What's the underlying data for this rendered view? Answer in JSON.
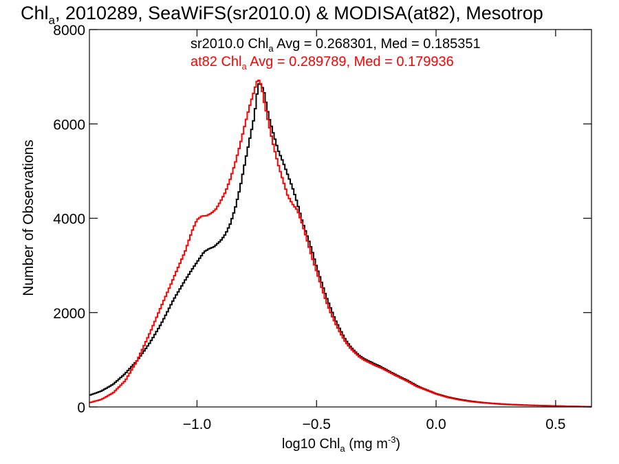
{
  "chart_data": {
    "type": "line",
    "title": "Chl",
    "title_sub": "a",
    "title_rest": ", 2010289, SeaWiFS(sr2010.0) & MODISA(at82), Mesotrop",
    "xlabel_pre": "log10 Chl",
    "xlabel_sub": "a",
    "xlabel_mid": " (mg m",
    "xlabel_sup": "-3",
    "xlabel_post": ")",
    "ylabel": "Number of Observations",
    "xlim": [
      -1.45,
      0.65
    ],
    "ylim": [
      0,
      8000
    ],
    "x_ticks": [
      {
        "value": -1.0,
        "label": "−1.0"
      },
      {
        "value": -0.5,
        "label": "−0.5"
      },
      {
        "value": 0.0,
        "label": "0.0"
      },
      {
        "value": 0.5,
        "label": "0.5"
      }
    ],
    "y_ticks": [
      {
        "value": 0,
        "label": "0"
      },
      {
        "value": 2000,
        "label": "2000"
      },
      {
        "value": 4000,
        "label": "4000"
      },
      {
        "value": 6000,
        "label": "6000"
      },
      {
        "value": 8000,
        "label": "8000"
      }
    ],
    "grid": false,
    "annotations": [
      {
        "pre": "sr2010.0 Chl",
        "sub": "a",
        "post": " Avg = 0.268301, Med = 0.185351",
        "color": "#000000"
      },
      {
        "pre": "at82 Chl",
        "sub": "a",
        "post": " Avg = 0.289789, Med = 0.179936",
        "color": "#ff0000"
      }
    ],
    "series": [
      {
        "color": "#000000",
        "points": [
          [
            -1.45,
            250
          ],
          [
            -1.4,
            340
          ],
          [
            -1.35,
            480
          ],
          [
            -1.3,
            700
          ],
          [
            -1.25,
            980
          ],
          [
            -1.2,
            1350
          ],
          [
            -1.15,
            1780
          ],
          [
            -1.1,
            2250
          ],
          [
            -1.05,
            2650
          ],
          [
            -1.0,
            3050
          ],
          [
            -0.97,
            3300
          ],
          [
            -0.95,
            3380
          ],
          [
            -0.93,
            3430
          ],
          [
            -0.9,
            3570
          ],
          [
            -0.88,
            3700
          ],
          [
            -0.86,
            3900
          ],
          [
            -0.84,
            4200
          ],
          [
            -0.82,
            4600
          ],
          [
            -0.8,
            5100
          ],
          [
            -0.78,
            5600
          ],
          [
            -0.76,
            6100
          ],
          [
            -0.75,
            6550
          ],
          [
            -0.74,
            6850
          ],
          [
            -0.73,
            6800
          ],
          [
            -0.72,
            6700
          ],
          [
            -0.7,
            6200
          ],
          [
            -0.68,
            5850
          ],
          [
            -0.66,
            5500
          ],
          [
            -0.64,
            5250
          ],
          [
            -0.62,
            4950
          ],
          [
            -0.6,
            4650
          ],
          [
            -0.58,
            4300
          ],
          [
            -0.56,
            3900
          ],
          [
            -0.54,
            3600
          ],
          [
            -0.52,
            3300
          ],
          [
            -0.5,
            2950
          ],
          [
            -0.48,
            2650
          ],
          [
            -0.46,
            2350
          ],
          [
            -0.44,
            2100
          ],
          [
            -0.42,
            1850
          ],
          [
            -0.4,
            1650
          ],
          [
            -0.38,
            1450
          ],
          [
            -0.36,
            1300
          ],
          [
            -0.34,
            1180
          ],
          [
            -0.32,
            1080
          ],
          [
            -0.3,
            1010
          ],
          [
            -0.28,
            960
          ],
          [
            -0.26,
            910
          ],
          [
            -0.24,
            870
          ],
          [
            -0.22,
            820
          ],
          [
            -0.2,
            770
          ],
          [
            -0.18,
            720
          ],
          [
            -0.16,
            670
          ],
          [
            -0.14,
            620
          ],
          [
            -0.12,
            570
          ],
          [
            -0.1,
            510
          ],
          [
            -0.08,
            450
          ],
          [
            -0.06,
            400
          ],
          [
            -0.04,
            360
          ],
          [
            -0.02,
            320
          ],
          [
            0.0,
            280
          ],
          [
            0.05,
            210
          ],
          [
            0.1,
            160
          ],
          [
            0.15,
            120
          ],
          [
            0.2,
            90
          ],
          [
            0.25,
            70
          ],
          [
            0.3,
            55
          ],
          [
            0.35,
            45
          ],
          [
            0.4,
            35
          ],
          [
            0.45,
            28
          ],
          [
            0.5,
            22
          ],
          [
            0.55,
            15
          ],
          [
            0.6,
            10
          ],
          [
            0.65,
            5
          ]
        ]
      },
      {
        "color": "#ff0000",
        "points": [
          [
            -1.45,
            90
          ],
          [
            -1.4,
            160
          ],
          [
            -1.35,
            300
          ],
          [
            -1.3,
            550
          ],
          [
            -1.25,
            980
          ],
          [
            -1.2,
            1550
          ],
          [
            -1.15,
            2150
          ],
          [
            -1.1,
            2700
          ],
          [
            -1.05,
            3250
          ],
          [
            -1.02,
            3700
          ],
          [
            -1.0,
            3950
          ],
          [
            -0.98,
            4050
          ],
          [
            -0.96,
            4080
          ],
          [
            -0.94,
            4150
          ],
          [
            -0.92,
            4250
          ],
          [
            -0.9,
            4420
          ],
          [
            -0.88,
            4600
          ],
          [
            -0.86,
            4850
          ],
          [
            -0.84,
            5150
          ],
          [
            -0.82,
            5500
          ],
          [
            -0.8,
            5900
          ],
          [
            -0.78,
            6300
          ],
          [
            -0.76,
            6650
          ],
          [
            -0.75,
            6850
          ],
          [
            -0.74,
            6900
          ],
          [
            -0.73,
            6800
          ],
          [
            -0.72,
            6500
          ],
          [
            -0.7,
            6050
          ],
          [
            -0.68,
            5600
          ],
          [
            -0.66,
            5200
          ],
          [
            -0.64,
            4850
          ],
          [
            -0.62,
            4500
          ],
          [
            -0.6,
            4300
          ],
          [
            -0.58,
            4150
          ],
          [
            -0.56,
            3850
          ],
          [
            -0.54,
            3500
          ],
          [
            -0.52,
            3150
          ],
          [
            -0.5,
            2850
          ],
          [
            -0.48,
            2550
          ],
          [
            -0.46,
            2250
          ],
          [
            -0.44,
            2000
          ],
          [
            -0.42,
            1780
          ],
          [
            -0.4,
            1580
          ],
          [
            -0.38,
            1400
          ],
          [
            -0.36,
            1260
          ],
          [
            -0.34,
            1150
          ],
          [
            -0.32,
            1050
          ],
          [
            -0.3,
            980
          ],
          [
            -0.28,
            930
          ],
          [
            -0.26,
            880
          ],
          [
            -0.24,
            840
          ],
          [
            -0.22,
            800
          ],
          [
            -0.2,
            750
          ],
          [
            -0.18,
            700
          ],
          [
            -0.16,
            650
          ],
          [
            -0.14,
            600
          ],
          [
            -0.12,
            550
          ],
          [
            -0.1,
            490
          ],
          [
            -0.08,
            430
          ],
          [
            -0.06,
            390
          ],
          [
            -0.04,
            350
          ],
          [
            -0.02,
            310
          ],
          [
            0.0,
            270
          ],
          [
            0.05,
            200
          ],
          [
            0.1,
            150
          ],
          [
            0.15,
            110
          ],
          [
            0.2,
            85
          ],
          [
            0.25,
            65
          ],
          [
            0.3,
            50
          ],
          [
            0.35,
            40
          ],
          [
            0.4,
            32
          ],
          [
            0.45,
            25
          ],
          [
            0.5,
            20
          ],
          [
            0.55,
            14
          ],
          [
            0.6,
            9
          ],
          [
            0.65,
            5
          ]
        ]
      }
    ]
  }
}
